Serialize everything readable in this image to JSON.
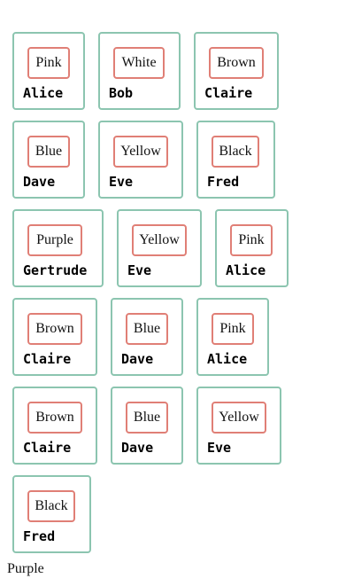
{
  "rows": [
    [
      {
        "color": "Pink",
        "name": "Alice"
      },
      {
        "color": "White",
        "name": "Bob"
      },
      {
        "color": "Brown",
        "name": "Claire"
      }
    ],
    [
      {
        "color": "Blue",
        "name": "Dave"
      },
      {
        "color": "Yellow",
        "name": "Eve"
      },
      {
        "color": "Black",
        "name": "Fred"
      }
    ],
    [
      {
        "color": "Purple",
        "name": "Gertrude"
      },
      {
        "color": "Yellow",
        "name": "Eve"
      },
      {
        "color": "Pink",
        "name": "Alice"
      }
    ],
    [
      {
        "color": "Brown",
        "name": "Claire"
      },
      {
        "color": "Blue",
        "name": "Dave"
      },
      {
        "color": "Pink",
        "name": "Alice"
      }
    ],
    [
      {
        "color": "Brown",
        "name": "Claire"
      },
      {
        "color": "Blue",
        "name": "Dave"
      },
      {
        "color": "Yellow",
        "name": "Eve"
      }
    ],
    [
      {
        "color": "Black",
        "name": "Fred"
      }
    ]
  ],
  "footer_text": "Purple",
  "theme": {
    "card_border": "#8cc5b0",
    "chip_border": "#e07f76"
  }
}
